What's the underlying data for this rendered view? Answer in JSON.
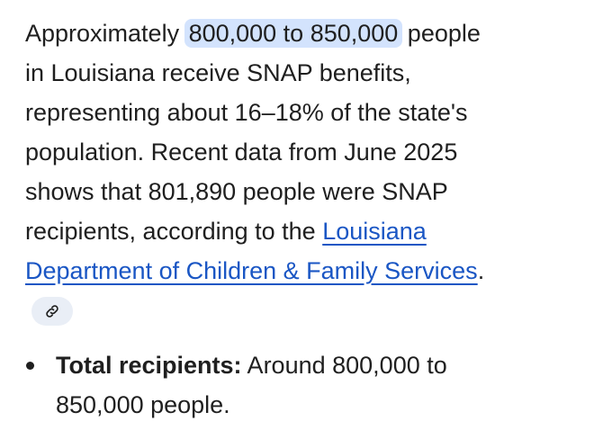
{
  "paragraph": {
    "lines": [
      [
        "Approximately ",
        "800,000 to 850,000",
        " people"
      ],
      [
        "in Louisiana receive SNAP benefits,"
      ],
      [
        "representing about 16–18% of the state's"
      ],
      [
        "population. Recent data from June 2025"
      ],
      [
        "shows that 801,890 people were SNAP"
      ],
      [
        "recipients, according to the ",
        "Louisiana"
      ],
      [
        "Department of Children & Family Services",
        "."
      ]
    ]
  },
  "bullets": [
    {
      "label": "Total recipients:",
      "lines": [
        " Around 800,000 to",
        "850,000 people."
      ]
    }
  ]
}
